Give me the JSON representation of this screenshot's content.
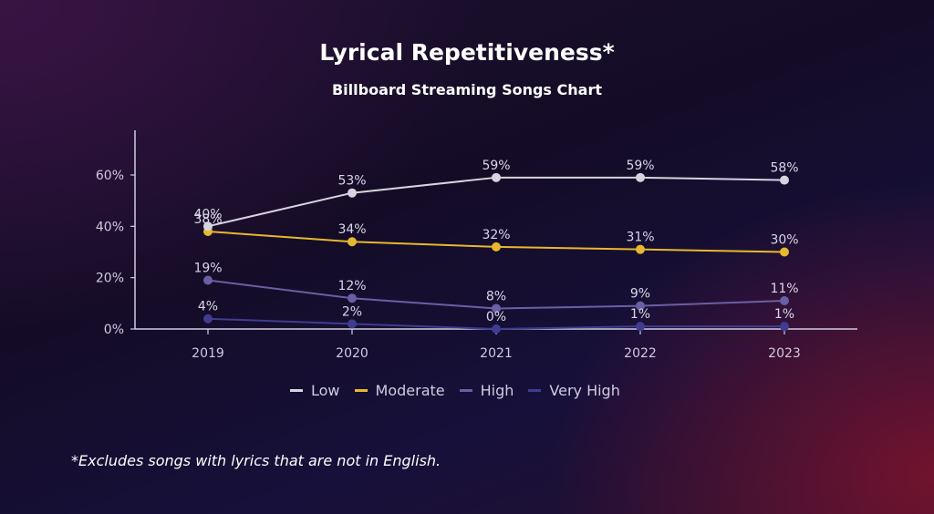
{
  "title": "Lyrical Repetitiveness*",
  "subtitle": "Billboard Streaming Songs Chart",
  "footnote": "*Excludes songs with lyrics that are not in English.",
  "chart_data": {
    "type": "line",
    "title": "Lyrical Repetitiveness*",
    "subtitle": "Billboard Streaming Songs Chart",
    "xlabel": "",
    "ylabel": "",
    "categories": [
      "2019",
      "2020",
      "2021",
      "2022",
      "2023"
    ],
    "ylim": [
      0,
      75
    ],
    "yticks": [
      0,
      20,
      40,
      60
    ],
    "ytick_labels": [
      "0%",
      "20%",
      "40%",
      "60%"
    ],
    "grid": false,
    "legend_position": "bottom",
    "series": [
      {
        "name": "Low",
        "color": "#d6d4de",
        "values": [
          40,
          53,
          59,
          59,
          58
        ],
        "labels": [
          "40%",
          "53%",
          "59%",
          "59%",
          "58%"
        ]
      },
      {
        "name": "Moderate",
        "color": "#e6b82f",
        "values": [
          38,
          34,
          32,
          31,
          30
        ],
        "labels": [
          "38%",
          "34%",
          "32%",
          "31%",
          "30%"
        ]
      },
      {
        "name": "High",
        "color": "#6a5fa4",
        "values": [
          19,
          12,
          8,
          9,
          11
        ],
        "labels": [
          "19%",
          "12%",
          "8%",
          "9%",
          "11%"
        ]
      },
      {
        "name": "Very High",
        "color": "#3f3c92",
        "values": [
          4,
          2,
          0,
          1,
          1
        ],
        "labels": [
          "4%",
          "2%",
          "0%",
          "1%",
          "1%"
        ]
      }
    ]
  }
}
